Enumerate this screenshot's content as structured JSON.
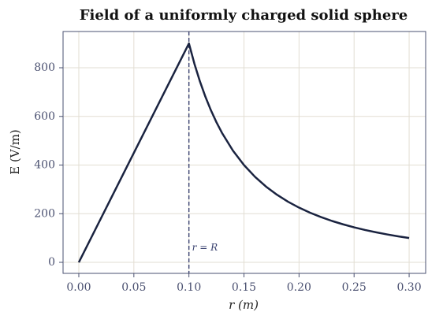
{
  "chart_data": {
    "type": "line",
    "title": "Field of a uniformly charged solid sphere",
    "x_label": "r (m)",
    "y_label": "E (V/m)",
    "x": [
      0,
      0.05,
      0.1,
      0.105,
      0.11,
      0.115,
      0.12,
      0.125,
      0.13,
      0.14,
      0.15,
      0.16,
      0.17,
      0.18,
      0.19,
      0.2,
      0.21,
      0.22,
      0.23,
      0.24,
      0.25,
      0.26,
      0.27,
      0.28,
      0.29,
      0.3
    ],
    "series": [
      {
        "name": "E",
        "color": "#1a2340",
        "values": [
          0,
          450,
          900,
          816.3,
          743.8,
          680.5,
          625,
          576,
          532.5,
          459.2,
          400,
          351.6,
          311.4,
          277.8,
          249.3,
          225,
          204.1,
          186,
          170.1,
          156.3,
          144,
          133.1,
          123.5,
          114.8,
          107,
          100
        ]
      }
    ],
    "vline": 0.1,
    "vline_label": "r = R",
    "xlim": [
      -0.0143,
      0.315
    ],
    "ylim": [
      -45.3,
      949
    ],
    "xticks": [
      {
        "value": 0,
        "label": "0.00"
      },
      {
        "value": 0.05,
        "label": "0.05"
      },
      {
        "value": 0.1,
        "label": "0.10"
      },
      {
        "value": 0.15,
        "label": "0.15"
      },
      {
        "value": 0.2,
        "label": "0.20"
      },
      {
        "value": 0.25,
        "label": "0.25"
      },
      {
        "value": 0.3,
        "label": "0.30"
      }
    ],
    "yticks": [
      0,
      200,
      400,
      600,
      800
    ],
    "grid": true
  }
}
